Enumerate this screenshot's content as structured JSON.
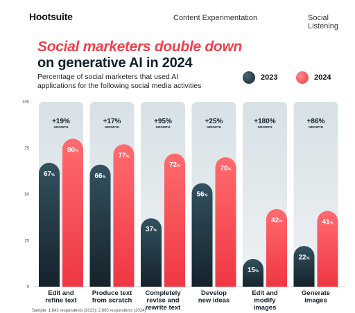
{
  "header": {
    "logo": "Hootsuite",
    "nav": [
      "Content Experimentation",
      "Social Listening"
    ]
  },
  "headline": {
    "line1": "Social marketers double down",
    "line2": "on generative AI in 2024"
  },
  "subtitle": "Percentage of social marketers that used AI applications for the following social media activities",
  "footnote": "Sample: 1,843 respondents (2023); 2,865 respondents (2024)",
  "colors": {
    "series_2023": "#1c2e3a",
    "series_2024": "#f2414b",
    "panel": "#dfe6ea"
  },
  "chart_data": {
    "type": "bar",
    "categories": [
      "Edit and refine text",
      "Produce text from scratch",
      "Completely revise and rewrite text",
      "Develop new ideas",
      "Edit and modify images",
      "Generate images"
    ],
    "category_lines": [
      [
        "Edit and",
        "refine text"
      ],
      [
        "Produce text",
        "from scratch"
      ],
      [
        "Completely",
        "revise and",
        "rewrite text"
      ],
      [
        "Develop",
        "new ideas"
      ],
      [
        "Edit and",
        "modify",
        "images"
      ],
      [
        "Generate",
        "images"
      ]
    ],
    "series": [
      {
        "name": "2023",
        "values": [
          67,
          66,
          37,
          56,
          15,
          22
        ]
      },
      {
        "name": "2024",
        "values": [
          80,
          77,
          72,
          70,
          42,
          41
        ]
      }
    ],
    "growth": [
      "+19%",
      "+17%",
      "+95%",
      "+25%",
      "+180%",
      "+86%"
    ],
    "growth_label": "GROWTH",
    "yticks": [
      0,
      25,
      50,
      75,
      100
    ],
    "ylim": [
      0,
      100
    ],
    "legend_position": "top-right",
    "grid": false
  }
}
